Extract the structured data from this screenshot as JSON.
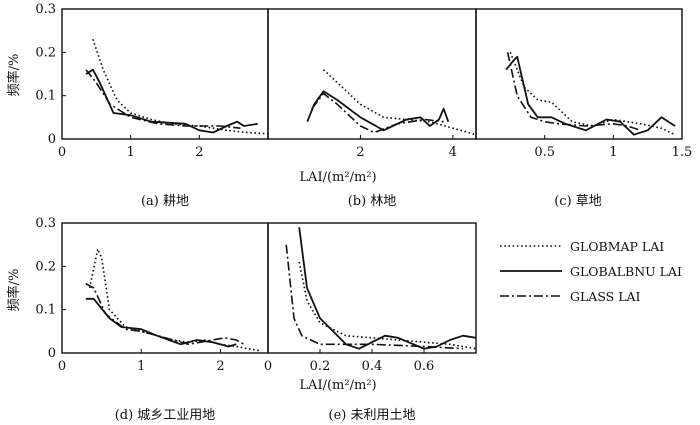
{
  "y_axis_label": "频率/%",
  "x_axis_label": "LAI/(m²/m²)",
  "legend": [
    {
      "name": "GLOBMAP LAI",
      "style": "dotted"
    },
    {
      "name": "GLOBALBNU LAI",
      "style": "solid"
    },
    {
      "name": "GLASS LAI",
      "style": "dashdot"
    }
  ],
  "chart_data": [
    {
      "type": "line",
      "caption": "(a) 耕地",
      "xlim": [
        0,
        3.0
      ],
      "ylim": [
        0,
        0.3
      ],
      "xticks": [
        "0",
        "1",
        "2"
      ],
      "xtick_values": [
        0,
        1,
        2
      ],
      "yticks": [
        "0",
        "0.1",
        "0.2",
        "0.3"
      ],
      "ytick_values": [
        0,
        0.1,
        0.2,
        0.3
      ],
      "series": [
        {
          "name": "GLOBMAP LAI",
          "style": "dotted",
          "points": [
            [
              0.45,
              0.23
            ],
            [
              0.6,
              0.16
            ],
            [
              0.8,
              0.09
            ],
            [
              1.0,
              0.06
            ],
            [
              1.3,
              0.045
            ],
            [
              1.6,
              0.035
            ],
            [
              2.0,
              0.03
            ],
            [
              2.4,
              0.02
            ],
            [
              2.7,
              0.015
            ],
            [
              3.0,
              0.012
            ]
          ]
        },
        {
          "name": "GLOBALBNU LAI",
          "style": "solid",
          "points": [
            [
              0.35,
              0.15
            ],
            [
              0.45,
              0.16
            ],
            [
              0.55,
              0.13
            ],
            [
              0.75,
              0.06
            ],
            [
              1.0,
              0.055
            ],
            [
              1.3,
              0.04
            ],
            [
              1.8,
              0.035
            ],
            [
              2.0,
              0.02
            ],
            [
              2.2,
              0.015
            ],
            [
              2.4,
              0.03
            ],
            [
              2.55,
              0.04
            ],
            [
              2.65,
              0.03
            ],
            [
              2.85,
              0.035
            ]
          ]
        },
        {
          "name": "GLASS LAI",
          "style": "dashdot",
          "points": [
            [
              0.35,
              0.16
            ],
            [
              0.5,
              0.13
            ],
            [
              0.7,
              0.08
            ],
            [
              1.0,
              0.05
            ],
            [
              1.4,
              0.035
            ],
            [
              1.8,
              0.03
            ],
            [
              2.3,
              0.03
            ],
            [
              2.6,
              0.025
            ]
          ]
        }
      ]
    },
    {
      "type": "line",
      "caption": "(b) 林地",
      "xlim": [
        0,
        4.5
      ],
      "ylim": [
        0,
        0.3
      ],
      "xticks": [
        "2",
        "4"
      ],
      "xtick_values": [
        2,
        4
      ],
      "yticks": [],
      "ytick_values": [],
      "series": [
        {
          "name": "GLOBMAP LAI",
          "style": "dotted",
          "points": [
            [
              1.2,
              0.16
            ],
            [
              1.6,
              0.12
            ],
            [
              2.0,
              0.08
            ],
            [
              2.5,
              0.05
            ],
            [
              3.0,
              0.045
            ],
            [
              3.5,
              0.04
            ],
            [
              4.0,
              0.025
            ],
            [
              4.5,
              0.01
            ]
          ]
        },
        {
          "name": "GLOBALBNU LAI",
          "style": "solid",
          "points": [
            [
              0.85,
              0.04
            ],
            [
              1.0,
              0.08
            ],
            [
              1.2,
              0.11
            ],
            [
              1.5,
              0.09
            ],
            [
              2.0,
              0.05
            ],
            [
              2.5,
              0.02
            ],
            [
              3.0,
              0.045
            ],
            [
              3.3,
              0.05
            ],
            [
              3.5,
              0.03
            ],
            [
              3.7,
              0.045
            ],
            [
              3.8,
              0.07
            ],
            [
              3.9,
              0.04
            ]
          ]
        },
        {
          "name": "GLASS LAI",
          "style": "dashdot",
          "points": [
            [
              0.95,
              0.07
            ],
            [
              1.2,
              0.105
            ],
            [
              1.5,
              0.08
            ],
            [
              2.0,
              0.03
            ],
            [
              2.3,
              0.015
            ],
            [
              2.8,
              0.035
            ],
            [
              3.4,
              0.045
            ],
            [
              3.8,
              0.04
            ]
          ]
        }
      ]
    },
    {
      "type": "line",
      "caption": "(c) 草地",
      "xlim": [
        0,
        1.5
      ],
      "ylim": [
        0,
        0.3
      ],
      "xticks": [
        "0.5",
        "1",
        "1.5"
      ],
      "xtick_values": [
        0.5,
        1.0,
        1.5
      ],
      "yticks": [],
      "ytick_values": [],
      "series": [
        {
          "name": "GLOBMAP LAI",
          "style": "dotted",
          "points": [
            [
              0.25,
              0.2
            ],
            [
              0.35,
              0.12
            ],
            [
              0.45,
              0.09
            ],
            [
              0.55,
              0.085
            ],
            [
              0.7,
              0.04
            ],
            [
              0.85,
              0.03
            ],
            [
              1.0,
              0.045
            ],
            [
              1.2,
              0.035
            ],
            [
              1.35,
              0.025
            ],
            [
              1.45,
              0.01
            ]
          ]
        },
        {
          "name": "GLOBALBNU LAI",
          "style": "solid",
          "points": [
            [
              0.22,
              0.16
            ],
            [
              0.27,
              0.18
            ],
            [
              0.3,
              0.19
            ],
            [
              0.38,
              0.08
            ],
            [
              0.45,
              0.05
            ],
            [
              0.55,
              0.05
            ],
            [
              0.65,
              0.035
            ],
            [
              0.8,
              0.02
            ],
            [
              0.95,
              0.045
            ],
            [
              1.05,
              0.04
            ],
            [
              1.15,
              0.01
            ],
            [
              1.25,
              0.02
            ],
            [
              1.35,
              0.05
            ],
            [
              1.45,
              0.03
            ]
          ]
        },
        {
          "name": "GLASS LAI",
          "style": "dashdot",
          "points": [
            [
              0.23,
              0.2
            ],
            [
              0.3,
              0.1
            ],
            [
              0.4,
              0.05
            ],
            [
              0.5,
              0.04
            ],
            [
              0.6,
              0.035
            ],
            [
              0.8,
              0.03
            ],
            [
              1.0,
              0.035
            ],
            [
              1.1,
              0.03
            ],
            [
              1.2,
              0.02
            ]
          ]
        }
      ]
    },
    {
      "type": "line",
      "caption": "(d) 城乡工业用地",
      "xlim": [
        0,
        2.6
      ],
      "ylim": [
        0,
        0.3
      ],
      "xticks": [
        "0",
        "1",
        "2"
      ],
      "xtick_values": [
        0,
        1,
        2
      ],
      "yticks": [
        "0",
        "0.1",
        "0.2",
        "0.3"
      ],
      "ytick_values": [
        0,
        0.1,
        0.2,
        0.3
      ],
      "series": [
        {
          "name": "GLOBMAP LAI",
          "style": "dotted",
          "points": [
            [
              0.35,
              0.15
            ],
            [
              0.45,
              0.24
            ],
            [
              0.5,
              0.22
            ],
            [
              0.6,
              0.1
            ],
            [
              0.8,
              0.06
            ],
            [
              1.0,
              0.05
            ],
            [
              1.2,
              0.04
            ],
            [
              1.4,
              0.03
            ],
            [
              1.6,
              0.025
            ],
            [
              1.8,
              0.03
            ],
            [
              2.0,
              0.02
            ],
            [
              2.2,
              0.015
            ],
            [
              2.35,
              0.01
            ],
            [
              2.5,
              0.005
            ]
          ]
        },
        {
          "name": "GLOBALBNU LAI",
          "style": "solid",
          "points": [
            [
              0.3,
              0.125
            ],
            [
              0.4,
              0.125
            ],
            [
              0.6,
              0.08
            ],
            [
              0.75,
              0.06
            ],
            [
              1.0,
              0.055
            ],
            [
              1.2,
              0.04
            ],
            [
              1.5,
              0.02
            ],
            [
              1.7,
              0.03
            ],
            [
              1.9,
              0.025
            ],
            [
              2.1,
              0.015
            ],
            [
              2.2,
              0.02
            ]
          ]
        },
        {
          "name": "GLASS LAI",
          "style": "dashdot",
          "points": [
            [
              0.3,
              0.16
            ],
            [
              0.4,
              0.15
            ],
            [
              0.55,
              0.09
            ],
            [
              0.8,
              0.055
            ],
            [
              1.0,
              0.05
            ],
            [
              1.3,
              0.035
            ],
            [
              1.6,
              0.02
            ],
            [
              1.9,
              0.03
            ],
            [
              2.05,
              0.035
            ],
            [
              2.2,
              0.03
            ],
            [
              2.3,
              0.02
            ]
          ]
        }
      ]
    },
    {
      "type": "line",
      "caption": "(e) 未利用土地",
      "xlim": [
        0,
        0.8
      ],
      "ylim": [
        0,
        0.3
      ],
      "xticks": [
        "0",
        "0.2",
        "0.4",
        "0.6"
      ],
      "xtick_values": [
        0,
        0.2,
        0.4,
        0.6
      ],
      "yticks": [],
      "ytick_values": [],
      "series": [
        {
          "name": "GLOBMAP LAI",
          "style": "dotted",
          "points": [
            [
              0.12,
              0.21
            ],
            [
              0.15,
              0.12
            ],
            [
              0.2,
              0.07
            ],
            [
              0.3,
              0.04
            ],
            [
              0.4,
              0.035
            ],
            [
              0.5,
              0.03
            ],
            [
              0.6,
              0.025
            ],
            [
              0.7,
              0.02
            ],
            [
              0.8,
              0.01
            ]
          ]
        },
        {
          "name": "GLOBALBNU LAI",
          "style": "solid",
          "points": [
            [
              0.12,
              0.29
            ],
            [
              0.15,
              0.15
            ],
            [
              0.2,
              0.08
            ],
            [
              0.25,
              0.05
            ],
            [
              0.3,
              0.02
            ],
            [
              0.35,
              0.01
            ],
            [
              0.4,
              0.025
            ],
            [
              0.45,
              0.04
            ],
            [
              0.5,
              0.035
            ],
            [
              0.6,
              0.01
            ],
            [
              0.65,
              0.015
            ],
            [
              0.7,
              0.03
            ],
            [
              0.75,
              0.04
            ],
            [
              0.8,
              0.035
            ]
          ]
        },
        {
          "name": "GLASS LAI",
          "style": "dashdot",
          "points": [
            [
              0.07,
              0.25
            ],
            [
              0.1,
              0.08
            ],
            [
              0.13,
              0.04
            ],
            [
              0.2,
              0.02
            ],
            [
              0.3,
              0.02
            ],
            [
              0.4,
              0.02
            ],
            [
              0.6,
              0.015
            ],
            [
              0.75,
              0.01
            ]
          ]
        }
      ]
    }
  ]
}
